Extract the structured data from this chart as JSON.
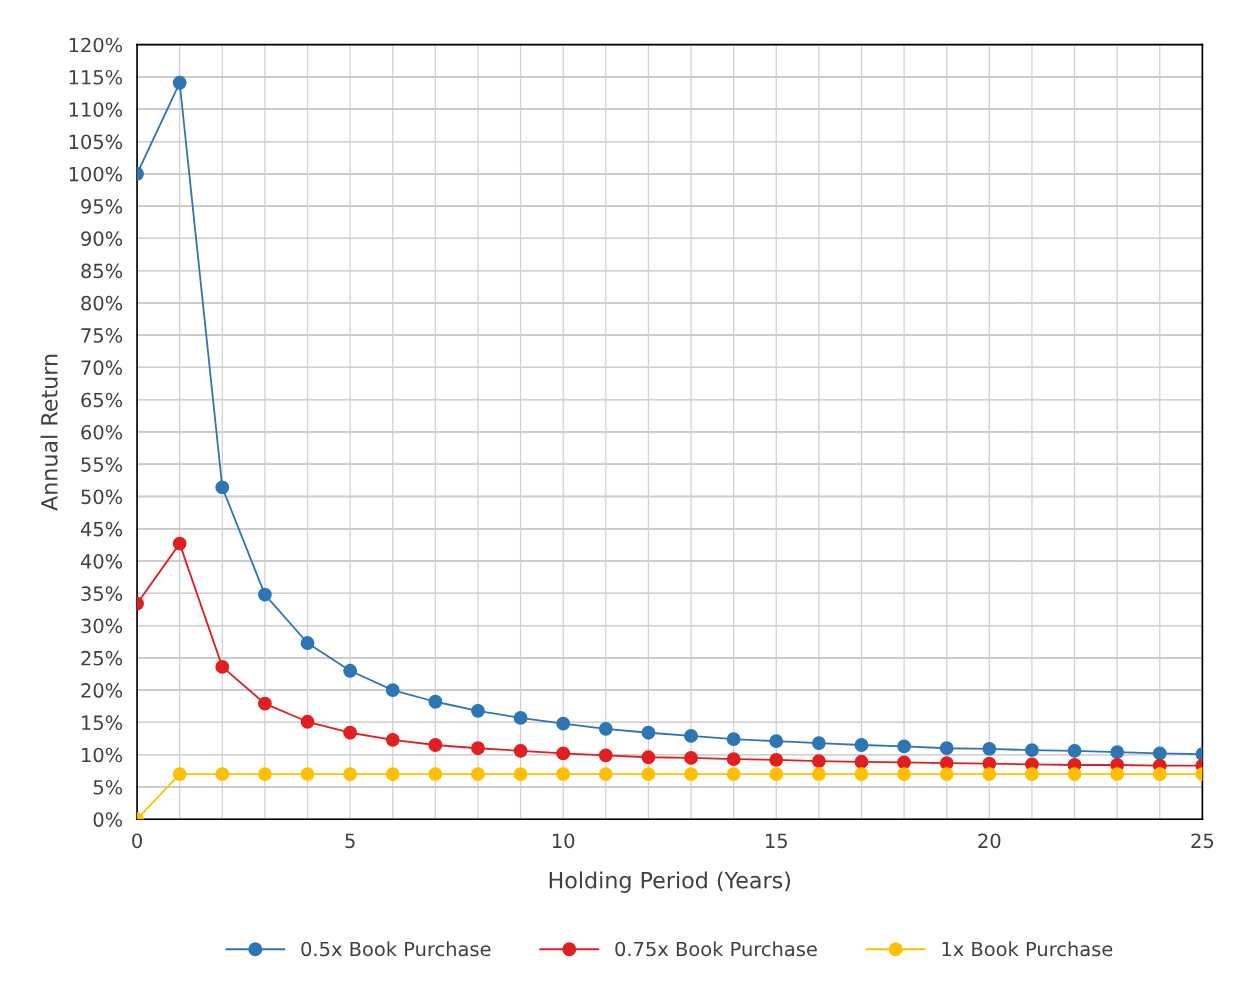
{
  "chart_data": {
    "type": "line",
    "xlabel": "Holding Period (Years)",
    "ylabel": "Annual Return",
    "x": [
      0,
      1,
      2,
      3,
      4,
      5,
      6,
      7,
      8,
      9,
      10,
      11,
      12,
      13,
      14,
      15,
      16,
      17,
      18,
      19,
      20,
      21,
      22,
      23,
      24,
      25
    ],
    "series": [
      {
        "name": "0.5x Book Purchase",
        "color": "#2e75b6",
        "values": [
          100,
          114.1,
          51.4,
          34.8,
          27.3,
          23.0,
          20.0,
          18.2,
          16.8,
          15.7,
          14.8,
          14.0,
          13.4,
          12.9,
          12.4,
          12.1,
          11.8,
          11.5,
          11.3,
          11.0,
          10.9,
          10.7,
          10.6,
          10.4,
          10.2,
          10.1
        ]
      },
      {
        "name": "0.75x Book Purchase",
        "color": "#e02020",
        "values": [
          33.4,
          42.7,
          23.6,
          17.9,
          15.1,
          13.4,
          12.3,
          11.5,
          11.0,
          10.6,
          10.2,
          9.9,
          9.6,
          9.5,
          9.3,
          9.2,
          9.0,
          8.9,
          8.8,
          8.7,
          8.6,
          8.5,
          8.4,
          8.4,
          8.3,
          8.3
        ]
      },
      {
        "name": "1x Book Purchase",
        "color": "#ffc000",
        "values": [
          0,
          7,
          7,
          7,
          7,
          7,
          7,
          7,
          7,
          7,
          7,
          7,
          7,
          7,
          7,
          7,
          7,
          7,
          7,
          7,
          7,
          7,
          7,
          7,
          7,
          7
        ]
      }
    ],
    "xlim": [
      0,
      25
    ],
    "xticks": [
      0,
      {
        "value": 1,
        "label": null
      },
      {
        "value": 2,
        "label": null
      },
      {
        "value": 3,
        "label": null
      },
      {
        "value": 4,
        "label": null
      },
      5,
      {
        "value": 6,
        "label": null
      },
      {
        "value": 7,
        "label": null
      },
      {
        "value": 8,
        "label": null
      },
      {
        "value": 9,
        "label": null
      },
      10,
      {
        "value": 11,
        "label": null
      },
      {
        "value": 12,
        "label": null
      },
      {
        "value": 13,
        "label": null
      },
      {
        "value": 14,
        "label": null
      },
      15,
      {
        "value": 16,
        "label": null
      },
      {
        "value": 17,
        "label": null
      },
      {
        "value": 18,
        "label": null
      },
      {
        "value": 19,
        "label": null
      },
      20,
      {
        "value": 21,
        "label": null
      },
      {
        "value": 22,
        "label": null
      },
      {
        "value": 23,
        "label": null
      },
      {
        "value": 24,
        "label": null
      },
      25
    ],
    "ylim": [
      0,
      120
    ],
    "yticks": [
      {
        "value": 0,
        "label": "0%"
      },
      {
        "value": 5,
        "label": "5%"
      },
      {
        "value": 10,
        "label": "10%"
      },
      {
        "value": 15,
        "label": "15%"
      },
      {
        "value": 20,
        "label": "20%"
      },
      {
        "value": 25,
        "label": "25%"
      },
      {
        "value": 30,
        "label": "30%"
      },
      {
        "value": 35,
        "label": "35%"
      },
      {
        "value": 40,
        "label": "40%"
      },
      {
        "value": 45,
        "label": "45%"
      },
      {
        "value": 50,
        "label": "50%"
      },
      {
        "value": 55,
        "label": "55%"
      },
      {
        "value": 60,
        "label": "60%"
      },
      {
        "value": 65,
        "label": "65%"
      },
      {
        "value": 70,
        "label": "70%"
      },
      {
        "value": 75,
        "label": "75%"
      },
      {
        "value": 80,
        "label": "80%"
      },
      {
        "value": 85,
        "label": "85%"
      },
      {
        "value": 90,
        "label": "90%"
      },
      {
        "value": 95,
        "label": "95%"
      },
      {
        "value": 100,
        "label": "100%"
      },
      {
        "value": 105,
        "label": "105%"
      },
      {
        "value": 110,
        "label": "110%"
      },
      {
        "value": 115,
        "label": "115%"
      },
      {
        "value": 120,
        "label": "120%"
      }
    ],
    "grid": true,
    "legend": "bottom",
    "marker": "circle",
    "line_style": "solid"
  }
}
